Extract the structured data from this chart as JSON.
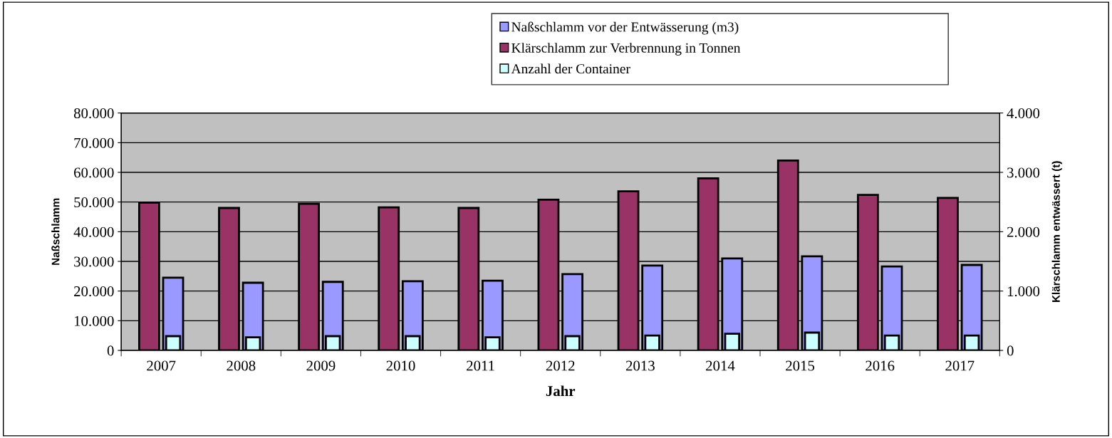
{
  "chart_data": {
    "type": "bar",
    "xlabel": "Jahr",
    "ylabel": "Naßschlamm",
    "y2label": "Klärschlamm entwässert (t)",
    "categories": [
      "2007",
      "2008",
      "2009",
      "2010",
      "2011",
      "2012",
      "2013",
      "2014",
      "2015",
      "2016",
      "2017"
    ],
    "series": [
      {
        "name": "Naßschlamm vor der Entwässerung (m3)",
        "color": "#9999ff",
        "values": [
          24500,
          22800,
          23100,
          23300,
          23500,
          25700,
          28600,
          31000,
          31700,
          28300,
          28800
        ]
      },
      {
        "name": "Klärschlamm zur Verbrennung in Tonnen",
        "color": "#993366",
        "axis": "y2",
        "values": [
          2490,
          2400,
          2470,
          2410,
          2400,
          2540,
          2680,
          2900,
          3200,
          2620,
          2570
        ]
      },
      {
        "name": "Anzahl der Container",
        "color": "#ccffff",
        "axis": "y2",
        "values": [
          240,
          220,
          240,
          240,
          220,
          240,
          250,
          280,
          300,
          250,
          250
        ]
      }
    ],
    "ylim": [
      0,
      80000
    ],
    "yticks": [
      0,
      {
        "value": 10000,
        "label": "10.000"
      },
      {
        "value": 20000,
        "label": "20.000"
      },
      {
        "value": 30000,
        "label": "30.000"
      },
      {
        "value": 40000,
        "label": "40.000"
      },
      {
        "value": 50000,
        "label": "50.000"
      },
      {
        "value": 60000,
        "label": "60.000"
      },
      {
        "value": 70000,
        "label": "70.000"
      },
      {
        "value": 80000,
        "label": "80.000"
      }
    ],
    "y2lim": [
      0,
      4000
    ],
    "y2ticks": [
      0,
      {
        "value": 1000,
        "label": "1.000"
      },
      {
        "value": 2000,
        "label": "2.000"
      },
      {
        "value": 3000,
        "label": "3.000"
      },
      {
        "value": 4000,
        "label": "4.000"
      }
    ],
    "grid": "y",
    "legend": "top right"
  }
}
